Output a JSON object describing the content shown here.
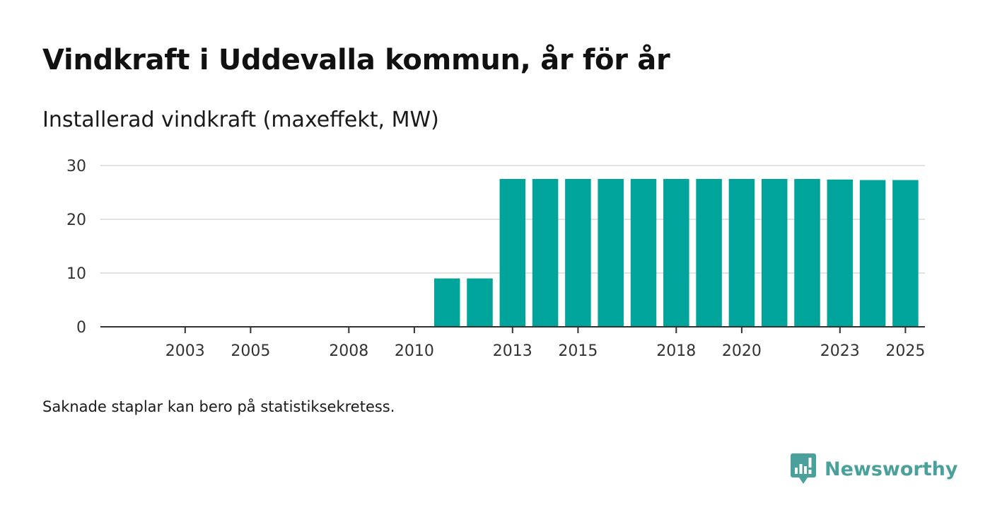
{
  "title": "Vindkraft i Uddevalla kommun, år för år",
  "subtitle": "Installerad vindkraft (maxeffekt, MW)",
  "note": "Saknade staplar kan bero på statistiksekretess.",
  "brand": {
    "name": "Newsworthy",
    "logo_icon": "newsworthy-chart-bubble-icon",
    "color": "#4aa19b"
  },
  "colors": {
    "bar": "#00a49a",
    "grid": "#d9d9d9",
    "axis": "#333333"
  },
  "chart_data": {
    "type": "bar",
    "title": "Vindkraft i Uddevalla kommun, år för år",
    "subtitle": "Installerad vindkraft (maxeffekt, MW)",
    "xlabel": "",
    "ylabel": "",
    "ylim": [
      0,
      30
    ],
    "yticks": [
      0,
      10,
      20,
      30
    ],
    "grid": true,
    "legend": "none",
    "categories": [
      "2002",
      "2003",
      "2004",
      "2005",
      "2006",
      "2007",
      "2008",
      "2009",
      "2010",
      "2011",
      "2012",
      "2013",
      "2014",
      "2015",
      "2016",
      "2017",
      "2018",
      "2019",
      "2020",
      "2021",
      "2022",
      "2023",
      "2024",
      "2025"
    ],
    "values": [
      null,
      null,
      null,
      null,
      null,
      null,
      null,
      null,
      null,
      9.0,
      9.0,
      27.5,
      27.5,
      27.5,
      27.5,
      27.5,
      27.5,
      27.5,
      27.5,
      27.5,
      27.5,
      27.4,
      27.3,
      27.3
    ],
    "xtick_labels": [
      "2003",
      "2005",
      "2008",
      "2010",
      "2013",
      "2015",
      "2018",
      "2020",
      "2023",
      "2025"
    ]
  }
}
